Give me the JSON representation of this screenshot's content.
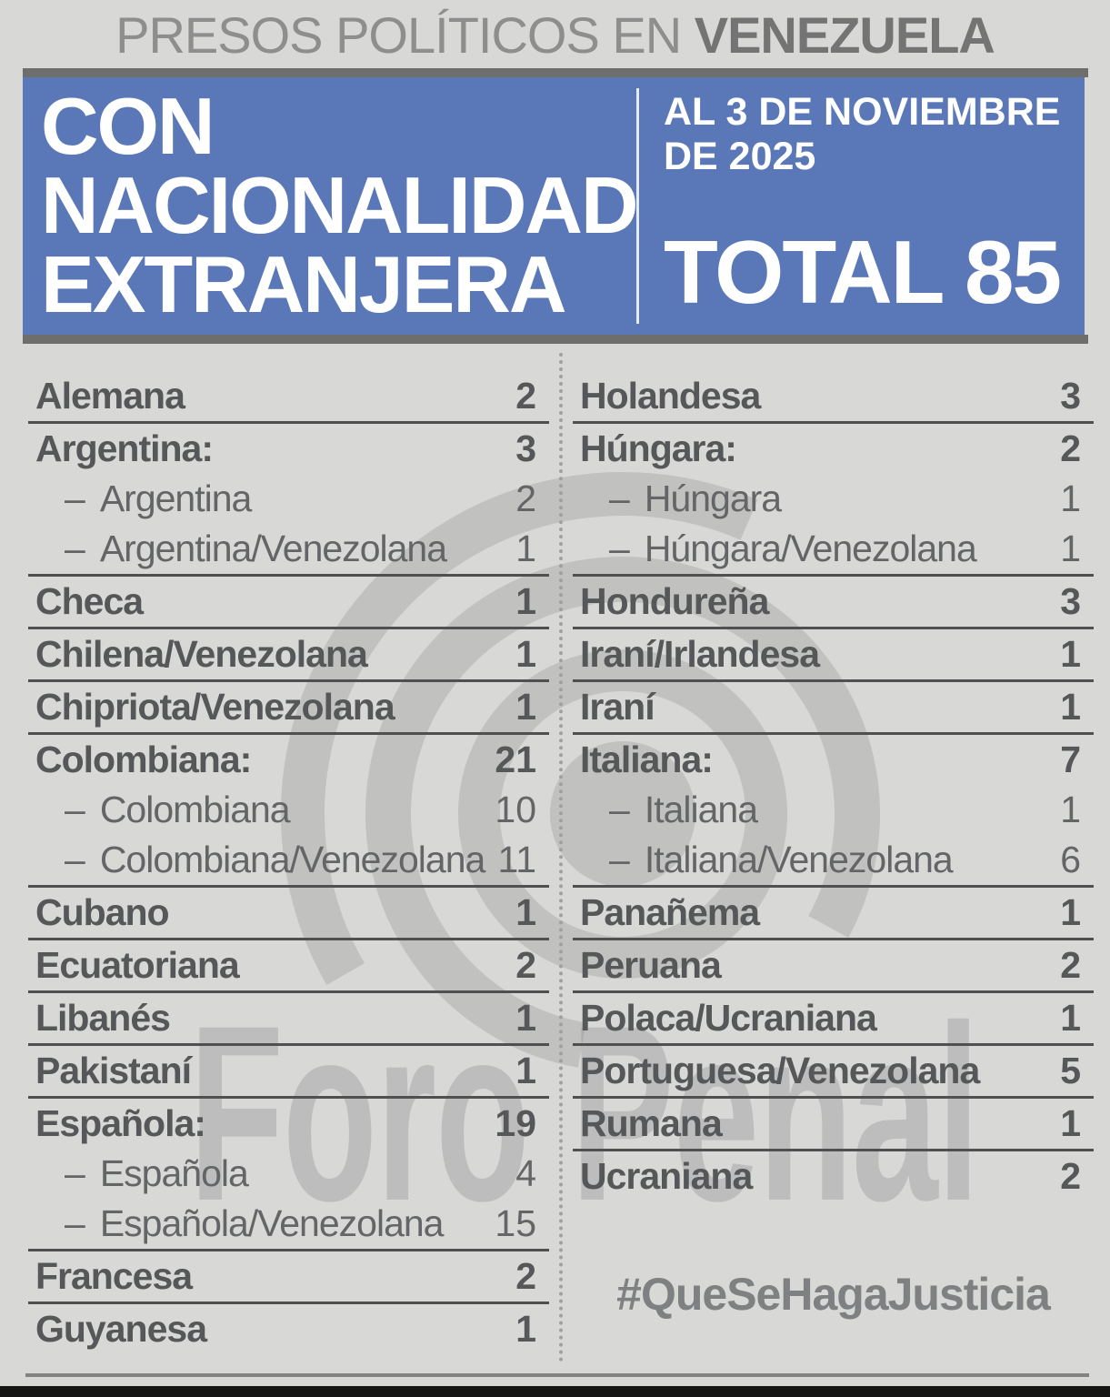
{
  "header": {
    "title_light": "PRESOS POLÍTICOS EN ",
    "title_bold": "VENEZUELA"
  },
  "banner": {
    "heading_line1": "CON",
    "heading_line2": "NACIONALIDAD",
    "heading_line3": "EXTRANJERA",
    "date_line1": "AL 3 DE NOVIEMBRE",
    "date_line2": "DE 2025",
    "total_label": "TOTAL 85"
  },
  "table": {
    "dash_prefix": "–",
    "columns": [
      {
        "groups": [
          {
            "rows": [
              {
                "label": "Alemana",
                "value": "2",
                "sub": false
              }
            ]
          },
          {
            "rows": [
              {
                "label": "Argentina:",
                "value": "3",
                "sub": false
              },
              {
                "label": "Argentina",
                "value": "2",
                "sub": true
              },
              {
                "label": "Argentina/Venezolana",
                "value": "1",
                "sub": true
              }
            ]
          },
          {
            "rows": [
              {
                "label": "Checa",
                "value": "1",
                "sub": false
              }
            ]
          },
          {
            "rows": [
              {
                "label": "Chilena/Venezolana",
                "value": "1",
                "sub": false
              }
            ]
          },
          {
            "rows": [
              {
                "label": "Chipriota/Venezolana",
                "value": "1",
                "sub": false
              }
            ]
          },
          {
            "rows": [
              {
                "label": "Colombiana:",
                "value": "21",
                "sub": false
              },
              {
                "label": "Colombiana",
                "value": "10",
                "sub": true
              },
              {
                "label": "Colombiana/Venezolana",
                "value": "11",
                "sub": true
              }
            ]
          },
          {
            "rows": [
              {
                "label": "Cubano",
                "value": "1",
                "sub": false
              }
            ]
          },
          {
            "rows": [
              {
                "label": "Ecuatoriana",
                "value": "2",
                "sub": false
              }
            ]
          },
          {
            "rows": [
              {
                "label": "Libanés",
                "value": "1",
                "sub": false
              }
            ]
          },
          {
            "rows": [
              {
                "label": "Pakistaní",
                "value": "1",
                "sub": false
              }
            ]
          },
          {
            "rows": [
              {
                "label": "Española:",
                "value": "19",
                "sub": false
              },
              {
                "label": "Española",
                "value": "4",
                "sub": true
              },
              {
                "label": "Española/Venezolana",
                "value": "15",
                "sub": true
              }
            ]
          },
          {
            "rows": [
              {
                "label": "Francesa",
                "value": "2",
                "sub": false
              }
            ]
          },
          {
            "rows": [
              {
                "label": "Guyanesa",
                "value": "1",
                "sub": false
              }
            ]
          }
        ]
      },
      {
        "groups": [
          {
            "rows": [
              {
                "label": "Holandesa",
                "value": "3",
                "sub": false
              }
            ]
          },
          {
            "rows": [
              {
                "label": "Húngara:",
                "value": "2",
                "sub": false
              },
              {
                "label": "Húngara",
                "value": "1",
                "sub": true
              },
              {
                "label": "Húngara/Venezolana",
                "value": "1",
                "sub": true
              }
            ]
          },
          {
            "rows": [
              {
                "label": "Hondureña",
                "value": "3",
                "sub": false
              }
            ]
          },
          {
            "rows": [
              {
                "label": "Iraní/Irlandesa",
                "value": "1",
                "sub": false
              }
            ]
          },
          {
            "rows": [
              {
                "label": "Iraní",
                "value": "1",
                "sub": false
              }
            ]
          },
          {
            "rows": [
              {
                "label": "Italiana:",
                "value": "7",
                "sub": false
              },
              {
                "label": "Italiana",
                "value": "1",
                "sub": true
              },
              {
                "label": "Italiana/Venezolana",
                "value": "6",
                "sub": true
              }
            ]
          },
          {
            "rows": [
              {
                "label": "Panañema",
                "value": "1",
                "sub": false
              }
            ]
          },
          {
            "rows": [
              {
                "label": "Peruana",
                "value": "2",
                "sub": false
              }
            ]
          },
          {
            "rows": [
              {
                "label": "Polaca/Ucraniana",
                "value": "1",
                "sub": false
              }
            ]
          },
          {
            "rows": [
              {
                "label": "Portuguesa/Venezolana",
                "value": "5",
                "sub": false
              }
            ]
          },
          {
            "rows": [
              {
                "label": "Rumana",
                "value": "1",
                "sub": false
              }
            ]
          },
          {
            "rows": [
              {
                "label": "Ucraniana",
                "value": "2",
                "sub": false
              }
            ]
          }
        ]
      }
    ]
  },
  "footer": {
    "hashtag": "#QueSeHagaJusticia"
  },
  "watermark": {
    "text": "Foro Penal"
  },
  "colors": {
    "accent_blue": "#5a78b7",
    "background": "#d8d8d7",
    "bar_gray": "#6e6e6c",
    "text_dark": "#565759",
    "text_sub": "#646567",
    "black_bar": "#151515"
  },
  "chart_data": {
    "type": "table",
    "title": "PRESOS POLÍTICOS EN VENEZUELA — CON NACIONALIDAD EXTRANJERA",
    "as_of": "AL 3 DE NOVIEMBRE DE 2025",
    "total": 85,
    "columns_layout": "two-column list with counts",
    "rows": [
      {
        "nationality": "Alemana",
        "count": 2
      },
      {
        "nationality": "Argentina",
        "count": 3,
        "breakdown": [
          {
            "label": "Argentina",
            "count": 2
          },
          {
            "label": "Argentina/Venezolana",
            "count": 1
          }
        ]
      },
      {
        "nationality": "Checa",
        "count": 1
      },
      {
        "nationality": "Chilena/Venezolana",
        "count": 1
      },
      {
        "nationality": "Chipriota/Venezolana",
        "count": 1
      },
      {
        "nationality": "Colombiana",
        "count": 21,
        "breakdown": [
          {
            "label": "Colombiana",
            "count": 10
          },
          {
            "label": "Colombiana/Venezolana",
            "count": 11
          }
        ]
      },
      {
        "nationality": "Cubano",
        "count": 1
      },
      {
        "nationality": "Ecuatoriana",
        "count": 2
      },
      {
        "nationality": "Libanés",
        "count": 1
      },
      {
        "nationality": "Pakistaní",
        "count": 1
      },
      {
        "nationality": "Española",
        "count": 19,
        "breakdown": [
          {
            "label": "Española",
            "count": 4
          },
          {
            "label": "Española/Venezolana",
            "count": 15
          }
        ]
      },
      {
        "nationality": "Francesa",
        "count": 2
      },
      {
        "nationality": "Guyanesa",
        "count": 1
      },
      {
        "nationality": "Holandesa",
        "count": 3
      },
      {
        "nationality": "Húngara",
        "count": 2,
        "breakdown": [
          {
            "label": "Húngara",
            "count": 1
          },
          {
            "label": "Húngara/Venezolana",
            "count": 1
          }
        ]
      },
      {
        "nationality": "Hondureña",
        "count": 3
      },
      {
        "nationality": "Iraní/Irlandesa",
        "count": 1
      },
      {
        "nationality": "Iraní",
        "count": 1
      },
      {
        "nationality": "Italiana",
        "count": 7,
        "breakdown": [
          {
            "label": "Italiana",
            "count": 1
          },
          {
            "label": "Italiana/Venezolana",
            "count": 6
          }
        ]
      },
      {
        "nationality": "Panañema",
        "count": 1
      },
      {
        "nationality": "Peruana",
        "count": 2
      },
      {
        "nationality": "Polaca/Ucraniana",
        "count": 1
      },
      {
        "nationality": "Portuguesa/Venezolana",
        "count": 5
      },
      {
        "nationality": "Rumana",
        "count": 1
      },
      {
        "nationality": "Ucraniana",
        "count": 2
      }
    ]
  }
}
